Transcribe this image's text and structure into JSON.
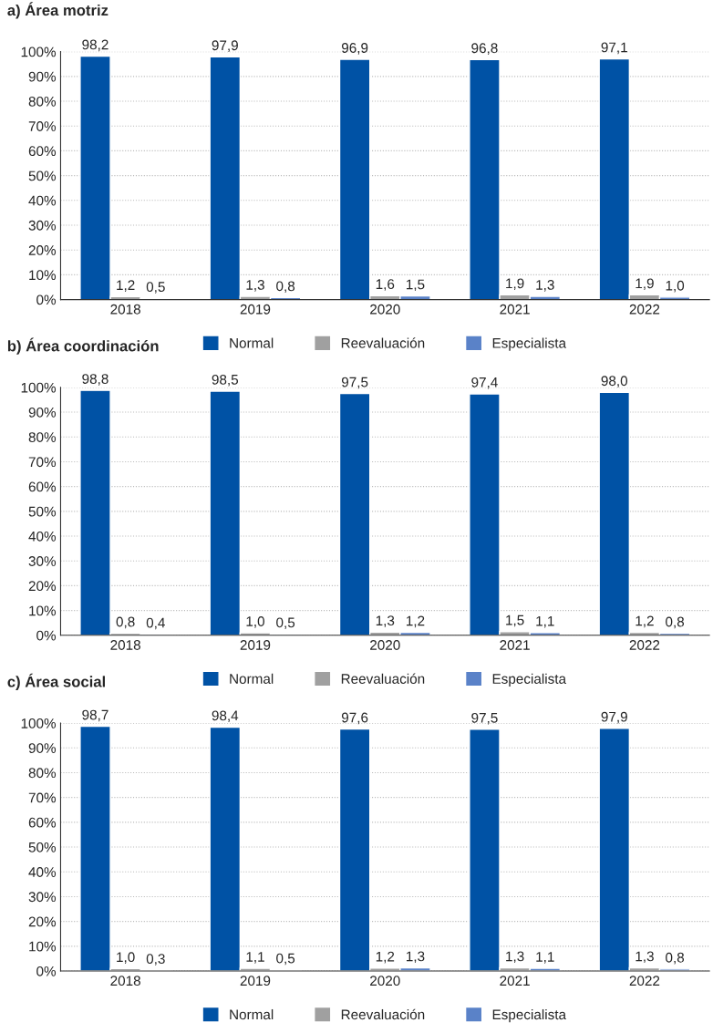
{
  "chart_data": [
    {
      "type": "bar",
      "title": "a) Área motriz",
      "categories": [
        "2018",
        "2019",
        "2020",
        "2021",
        "2022"
      ],
      "ylim": [
        0,
        100
      ],
      "yticks": [
        {
          "value": 0,
          "label": "0%"
        },
        {
          "value": 10,
          "label": "10%"
        },
        {
          "value": 20,
          "label": "20%"
        },
        {
          "value": 30,
          "label": "30%"
        },
        {
          "value": 40,
          "label": "40%"
        },
        {
          "value": 50,
          "label": "50%"
        },
        {
          "value": 60,
          "label": "60%"
        },
        {
          "value": 70,
          "label": "70%"
        },
        {
          "value": 80,
          "label": "80%"
        },
        {
          "value": 90,
          "label": "90%"
        },
        {
          "value": 100,
          "label": "100%"
        }
      ],
      "grid": "y",
      "legend": "bottom",
      "series": [
        {
          "name": "Normal",
          "color": "#0052a5",
          "values": [
            98.2,
            97.9,
            96.9,
            96.8,
            97.1
          ],
          "value_labels": [
            "98,2",
            "97,9",
            "96,9",
            "96,8",
            "97,1"
          ]
        },
        {
          "name": "Reevaluación",
          "color": "#a0a0a0",
          "values": [
            1.2,
            1.3,
            1.6,
            1.9,
            1.9
          ],
          "value_labels": [
            "1,2",
            "1,3",
            "1,6",
            "1,9",
            "1,9"
          ]
        },
        {
          "name": "Especialista",
          "color": "#5a82c8",
          "values": [
            0.5,
            0.8,
            1.5,
            1.3,
            1.0
          ],
          "value_labels": [
            "0,5",
            "0,8",
            "1,5",
            "1,3",
            "1,0"
          ]
        }
      ]
    },
    {
      "type": "bar",
      "title": "b) Área coordinación",
      "categories": [
        "2018",
        "2019",
        "2020",
        "2021",
        "2022"
      ],
      "ylim": [
        0,
        100
      ],
      "yticks": [
        {
          "value": 0,
          "label": "0%"
        },
        {
          "value": 10,
          "label": "10%"
        },
        {
          "value": 20,
          "label": "20%"
        },
        {
          "value": 30,
          "label": "30%"
        },
        {
          "value": 40,
          "label": "40%"
        },
        {
          "value": 50,
          "label": "50%"
        },
        {
          "value": 60,
          "label": "60%"
        },
        {
          "value": 70,
          "label": "70%"
        },
        {
          "value": 80,
          "label": "80%"
        },
        {
          "value": 90,
          "label": "90%"
        },
        {
          "value": 100,
          "label": "100%"
        }
      ],
      "grid": "y",
      "legend": "bottom",
      "series": [
        {
          "name": "Normal",
          "color": "#0052a5",
          "values": [
            98.8,
            98.5,
            97.5,
            97.4,
            98.0
          ],
          "value_labels": [
            "98,8",
            "98,5",
            "97,5",
            "97,4",
            "98,0"
          ]
        },
        {
          "name": "Reevaluación",
          "color": "#a0a0a0",
          "values": [
            0.8,
            1.0,
            1.3,
            1.5,
            1.2
          ],
          "value_labels": [
            "0,8",
            "1,0",
            "1,3",
            "1,5",
            "1,2"
          ]
        },
        {
          "name": "Especialista",
          "color": "#5a82c8",
          "values": [
            0.4,
            0.5,
            1.2,
            1.1,
            0.8
          ],
          "value_labels": [
            "0,4",
            "0,5",
            "1,2",
            "1,1",
            "0,8"
          ]
        }
      ]
    },
    {
      "type": "bar",
      "title": "c) Área social",
      "categories": [
        "2018",
        "2019",
        "2020",
        "2021",
        "2022"
      ],
      "ylim": [
        0,
        100
      ],
      "yticks": [
        {
          "value": 0,
          "label": "0%"
        },
        {
          "value": 10,
          "label": "10%"
        },
        {
          "value": 20,
          "label": "20%"
        },
        {
          "value": 30,
          "label": "30%"
        },
        {
          "value": 40,
          "label": "40%"
        },
        {
          "value": 50,
          "label": "50%"
        },
        {
          "value": 60,
          "label": "60%"
        },
        {
          "value": 70,
          "label": "70%"
        },
        {
          "value": 80,
          "label": "80%"
        },
        {
          "value": 90,
          "label": "90%"
        },
        {
          "value": 100,
          "label": "100%"
        }
      ],
      "grid": "y",
      "legend": "bottom",
      "series": [
        {
          "name": "Normal",
          "color": "#0052a5",
          "values": [
            98.7,
            98.4,
            97.6,
            97.5,
            97.9
          ],
          "value_labels": [
            "98,7",
            "98,4",
            "97,6",
            "97,5",
            "97,9"
          ]
        },
        {
          "name": "Reevaluación",
          "color": "#a0a0a0",
          "values": [
            1.0,
            1.1,
            1.2,
            1.3,
            1.3
          ],
          "value_labels": [
            "1,0",
            "1,1",
            "1,2",
            "1,3",
            "1,3"
          ]
        },
        {
          "name": "Especialista",
          "color": "#5a82c8",
          "values": [
            0.3,
            0.5,
            1.3,
            1.1,
            0.8
          ],
          "value_labels": [
            "0,3",
            "0,5",
            "1,3",
            "1,1",
            "0,8"
          ]
        }
      ]
    }
  ]
}
